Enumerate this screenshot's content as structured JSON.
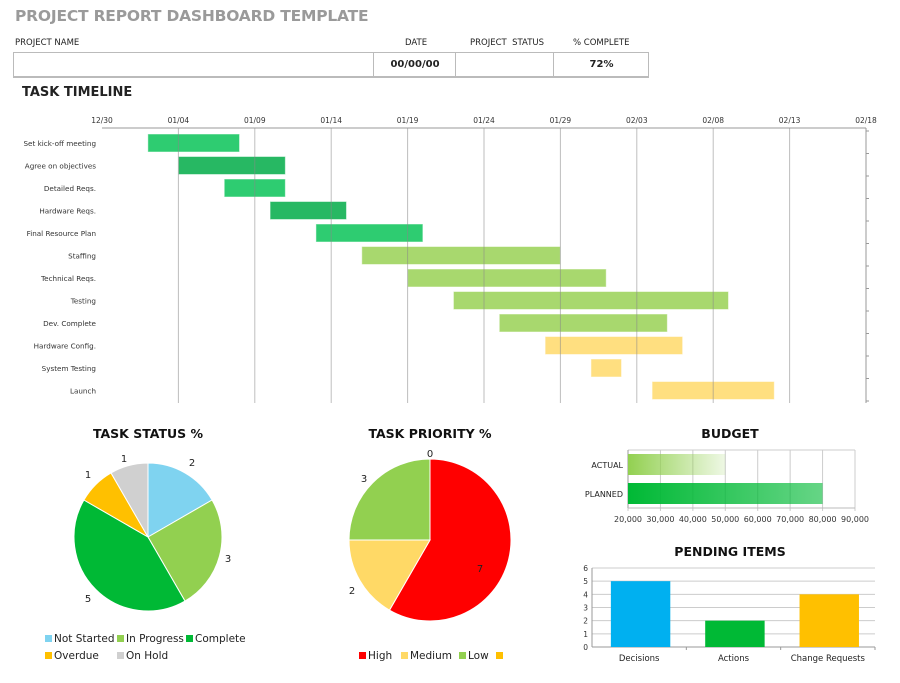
{
  "title": "PROJECT REPORT DASHBOARD TEMPLATE",
  "project_info": {
    "headers": {
      "project_name": "PROJECT NAME",
      "date": "DATE",
      "project_status": "PROJECT  STATUS",
      "percent_complete": "% COMPLETE"
    },
    "values": {
      "project_name": "",
      "date": "00/00/00",
      "project_status": "",
      "percent_complete": "72%"
    }
  },
  "chart_data": [
    {
      "id": "task-timeline",
      "type": "gantt",
      "title": "TASK TIMELINE",
      "x_ticks": [
        "12/30",
        "01/04",
        "01/09",
        "01/14",
        "01/19",
        "01/24",
        "01/29",
        "02/03",
        "02/08",
        "02/13",
        "02/18"
      ],
      "xlim": [
        "12/30",
        "02/18"
      ],
      "grid": true,
      "tasks": [
        {
          "name": "Set kick-off meeting",
          "start": "01/02",
          "end": "01/08",
          "color": "#2ecc71"
        },
        {
          "name": "Agree on objectives",
          "start": "01/04",
          "end": "01/11",
          "color": "#27b863"
        },
        {
          "name": "Detailed Reqs.",
          "start": "01/07",
          "end": "01/11",
          "color": "#2ecc71"
        },
        {
          "name": "Hardware Reqs.",
          "start": "01/10",
          "end": "01/15",
          "color": "#27b863"
        },
        {
          "name": "Final Resource Plan",
          "start": "01/13",
          "end": "01/20",
          "color": "#2ecc71"
        },
        {
          "name": "Staffing",
          "start": "01/16",
          "end": "01/29",
          "color": "#a8d86e"
        },
        {
          "name": "Technical Reqs.",
          "start": "01/19",
          "end": "02/01",
          "color": "#a8d86e"
        },
        {
          "name": "Testing",
          "start": "01/22",
          "end": "02/09",
          "color": "#a8d86e"
        },
        {
          "name": "Dev. Complete",
          "start": "01/25",
          "end": "02/05",
          "color": "#a8d86e"
        },
        {
          "name": "Hardware Config.",
          "start": "01/28",
          "end": "02/06",
          "color": "#ffdf80"
        },
        {
          "name": "System Testing",
          "start": "01/31",
          "end": "02/02",
          "color": "#ffdf80"
        },
        {
          "name": "Launch",
          "start": "02/04",
          "end": "02/12",
          "color": "#ffdf80"
        }
      ]
    },
    {
      "id": "task-status",
      "type": "pie",
      "title": "TASK STATUS %",
      "legend": "bottom",
      "slices": [
        {
          "name": "Not Started",
          "value": 2,
          "color": "#7fd3f0"
        },
        {
          "name": "In Progress",
          "value": 3,
          "color": "#92d050"
        },
        {
          "name": "Complete",
          "value": 5,
          "color": "#00b935"
        },
        {
          "name": "Overdue",
          "value": 1,
          "color": "#ffc000"
        },
        {
          "name": "On Hold",
          "value": 1,
          "color": "#d0d0d0"
        }
      ]
    },
    {
      "id": "task-priority",
      "type": "pie",
      "title": "TASK PRIORITY %",
      "legend": "bottom",
      "slices": [
        {
          "name": "High",
          "value": 7,
          "color": "#ff0000"
        },
        {
          "name": "Medium",
          "value": 2,
          "color": "#ffd966"
        },
        {
          "name": "Low",
          "value": 3,
          "color": "#92d050"
        },
        {
          "name": "",
          "value": 0,
          "color": "#ffc000"
        }
      ]
    },
    {
      "id": "budget",
      "type": "bar",
      "orientation": "horizontal",
      "title": "BUDGET",
      "categories": [
        "ACTUAL",
        "PLANNED"
      ],
      "values": [
        50000,
        80000
      ],
      "colors": [
        "#92d050",
        "#00b935"
      ],
      "xlim": [
        20000,
        90000
      ],
      "x_ticks": [
        "20,000",
        "30,000",
        "40,000",
        "50,000",
        "60,000",
        "70,000",
        "80,000",
        "90,000"
      ],
      "grid": true
    },
    {
      "id": "pending-items",
      "type": "bar",
      "title": "PENDING ITEMS",
      "categories": [
        "Decisions",
        "Actions",
        "Change Requests"
      ],
      "values": [
        5,
        2,
        4
      ],
      "colors": [
        "#00b0f0",
        "#00b935",
        "#ffc000"
      ],
      "ylim": [
        0,
        6
      ],
      "y_ticks": [
        "0",
        "1",
        "2",
        "3",
        "4",
        "5",
        "6"
      ],
      "grid": true
    }
  ]
}
